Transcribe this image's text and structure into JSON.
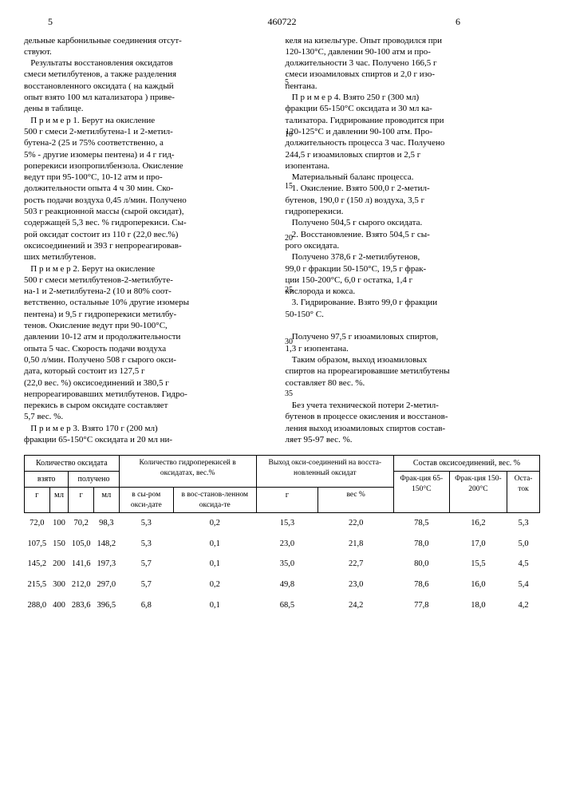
{
  "header": {
    "page_left": "5",
    "doc_number": "460722",
    "page_right": "6"
  },
  "col_left": "дельные карбонильные соединения отсут-\nствуют.\n   Результаты восстановления оксидатов\nсмеси метилбутенов, а также разделения\nвосстановленного оксидата ( на каждый\nопыт взято 100 мл катализатора ) приве-\nдены в таблице.\n   П р и м е р 1. Берут на окисление\n500 г смеси 2-метилбутена-1 и 2-метил-\nбутена-2 (25 и 75% соответственно, а\n5% - другие изомеры пентена) и 4 г гид-\nроперекиси изопропилбензола. Окисление\nведут при 95-100°С, 10-12 атм и про-\nдолжительности опыта 4 ч 30 мин. Ско-\nрость подачи воздуха 0,45 л/мин. Получено\n503 г реакционной массы (сырой оксидат),\nсодержащей 5,3 вес. % гидроперекиси. Сы-\nрой оксидат состоит из 110 г (22,0 вес.%)\nоксисоединений и 393 г непрореагировав-\nших метилбутенов.\n   П р и м е р 2. Берут на окисление\n500 г смеси метилбутенов-2-метилбуте-\nна-1 и 2-метилбутена-2 (10 и 80% соот-\nветственно, остальные 10% другие изомеры\nпентена) и 9,5 г гидроперекиси метилбу-\nтенов. Окисление ведут при 90-100°С,\nдавлении 10-12 атм и продолжительности\nопыта 5 час. Скорость подачи воздуха\n0,50 л/мин. Получено 508 г сырого окси-\nдата, который состоит из 127,5 г\n(22,0 вес. %) оксисоединений и 380,5 г\nнепрореагировавших метилбутенов. Гидро-\nперекись в сыром оксидате составляет\n5,7 вес. %.\n   П р и м е р 3. Взято 170 г (200 мл)\nфракции 65-150°С оксидата и 20 мл ни-",
  "col_right": "келя на кизельгуре. Опыт проводился при\n120-130°С, давлении 90-100 атм и про-\nдолжительности 3 час. Получено 166,5 г\nсмеси изоамиловых спиртов и 2,0 г изо-\nпентана.\n   П р и м е р 4. Взято 250 г (300 мл)\nфракции 65-150°С оксидата и 30 мл ка-\nтализатора. Гидрирование проводится при\n120-125°С и давлении 90-100 атм. Про-\nдолжительность процесса 3 час. Получено\n244,5 г изоамиловых спиртов и 2,5 г\nизопентана.\n   Материальный баланс процесса.\n   1. Окисление. Взято 500,0 г 2-метил-\nбутенов, 190,0 г (150 л) воздуха, 3,5 г\nгидроперекиси.\n   Получено 504,5 г сырого оксидата.\n   2. Восстановление. Взято 504,5 г сы-\nрого оксидата.\n   Получено 378,6 г 2-метилбутенов,\n99,0 г фракции 50-150°С, 19,5 г фрак-\nции 150-200°С, 6,0 г остатка, 1,4 г\nкислорода и кокса.\n   3. Гидрирование. Взято 99,0 г фракции\n50-150° С.\n\n   Получено 97,5 г изоамиловых спиртов,\n1,3 г изопентана.\n   Таким образом, выход изоамиловых\nспиртов на прореагировавшие метилбутены\nсоставляет 80 вес. %.\n\n   Без учета технической потери 2-метил-\nбутенов в процессе окисления и восстанов-\nления выход изоамиловых спиртов состав-\nляет 95-97 вес. %.",
  "line_nums": [
    "5",
    "10",
    "15",
    "20",
    "25",
    "30",
    "35"
  ],
  "table": {
    "h1": "Количество оксидата",
    "h2": "Количество гидроперекисей в оксидатах, вес.%",
    "h3": "Выход окси-соединений на восста-новленный оксидат",
    "h4": "Состав оксисоединений, вес. %",
    "h1a": "взято",
    "h1b": "получено",
    "c_g": "г",
    "c_ml": "мл",
    "c_raw": "в сы-ром окси-дате",
    "c_rest": "в вос-станов-ленном оксида-те",
    "c_g2": "г",
    "c_pct": "вес %",
    "c_f1": "Фрак-ция 65-150°С",
    "c_f2": "Фрак-ция 150-200°С",
    "c_ost": "Оста-ток",
    "rows": [
      [
        "72,0",
        "100",
        "70,2",
        "98,3",
        "5,3",
        "0,2",
        "15,3",
        "22,0",
        "78,5",
        "16,2",
        "5,3"
      ],
      [
        "107,5",
        "150",
        "105,0",
        "148,2",
        "5,3",
        "0,1",
        "23,0",
        "21,8",
        "78,0",
        "17,0",
        "5,0"
      ],
      [
        "145,2",
        "200",
        "141,6",
        "197,3",
        "5,7",
        "0,1",
        "35,0",
        "22,7",
        "80,0",
        "15,5",
        "4,5"
      ],
      [
        "215,5",
        "300",
        "212,0",
        "297,0",
        "5,7",
        "0,2",
        "49,8",
        "23,0",
        "78,6",
        "16,0",
        "5,4"
      ],
      [
        "288,0",
        "400",
        "283,6",
        "396,5",
        "6,8",
        "0,1",
        "68,5",
        "24,2",
        "77,8",
        "18,0",
        "4,2"
      ]
    ]
  }
}
